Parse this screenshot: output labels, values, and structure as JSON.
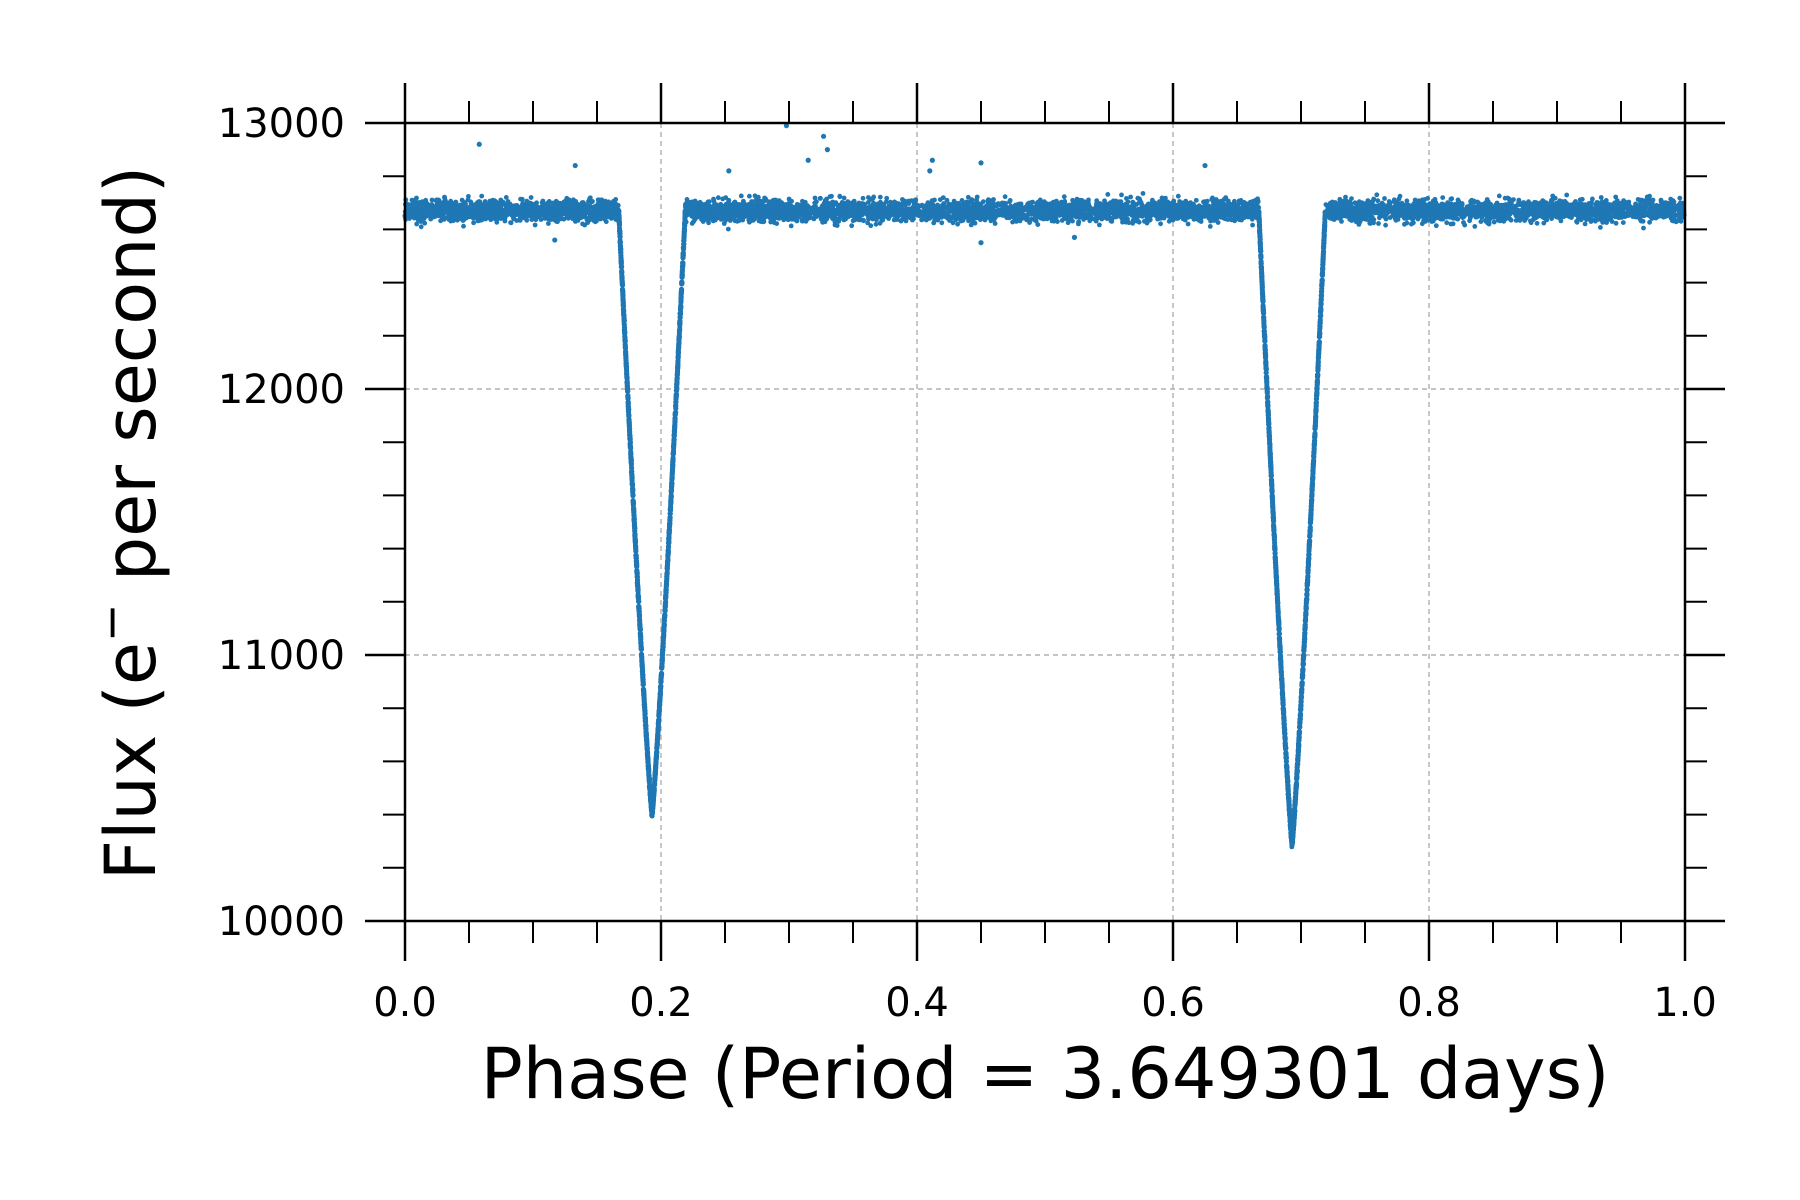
{
  "chart_data": {
    "type": "scatter",
    "title": "",
    "xlabel": "Phase (Period = 3.649301 days)",
    "ylabel_prefix": "Flux (e",
    "ylabel_sup": "−",
    "ylabel_suffix": " per second)",
    "xlim": [
      0.0,
      1.0
    ],
    "ylim": [
      10000,
      13000
    ],
    "x_ticks": [
      0.0,
      0.2,
      0.4,
      0.6,
      0.8,
      1.0
    ],
    "x_tick_labels": [
      "0.0",
      "0.2",
      "0.4",
      "0.6",
      "0.8",
      "1.0"
    ],
    "y_ticks": [
      10000,
      11000,
      12000,
      13000
    ],
    "y_tick_labels": [
      "10000",
      "11000",
      "12000",
      "13000"
    ],
    "grid": true,
    "legend": "none",
    "series": [
      {
        "color": "#1f77b4",
        "baseline_flux": 12670,
        "eclipses": [
          {
            "phase_center": 0.193,
            "phase_start": 0.167,
            "phase_end": 0.219,
            "min_flux": 10400
          },
          {
            "phase_center": 0.693,
            "phase_start": 0.667,
            "phase_end": 0.719,
            "min_flux": 10290
          }
        ],
        "outliers": [
          {
            "x": 0.058,
            "y": 12920
          },
          {
            "x": 0.133,
            "y": 12840
          },
          {
            "x": 0.253,
            "y": 12820
          },
          {
            "x": 0.298,
            "y": 12990
          },
          {
            "x": 0.315,
            "y": 12860
          },
          {
            "x": 0.327,
            "y": 12950
          },
          {
            "x": 0.33,
            "y": 12900
          },
          {
            "x": 0.412,
            "y": 12860
          },
          {
            "x": 0.41,
            "y": 12820
          },
          {
            "x": 0.45,
            "y": 12850
          },
          {
            "x": 0.45,
            "y": 12550
          },
          {
            "x": 0.625,
            "y": 12840
          },
          {
            "x": 0.117,
            "y": 12560
          },
          {
            "x": 0.523,
            "y": 12570
          }
        ]
      }
    ]
  }
}
